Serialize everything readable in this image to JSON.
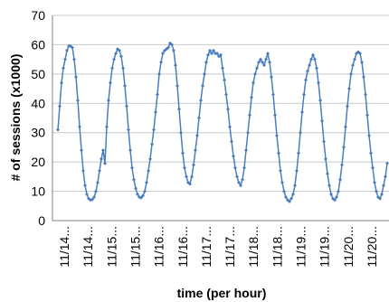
{
  "chart_data": {
    "type": "line",
    "title": "",
    "xlabel": "time (per hour)",
    "ylabel": "# of sessions (x1000)",
    "ylim": [
      0,
      70
    ],
    "yticks": [
      0,
      10,
      20,
      30,
      40,
      50,
      60,
      70
    ],
    "grid": true,
    "legend": "none",
    "x_tick_labels": [
      "11/14...",
      "11/14...",
      "11/15...",
      "11/15...",
      "11/16...",
      "11/16...",
      "11/17...",
      "11/17...",
      "11/18...",
      "11/18...",
      "11/19...",
      "11/19...",
      "11/20...",
      "11/20..."
    ],
    "series": [
      {
        "color": "#4a7ebb",
        "marker": "diamond",
        "values": [
          31,
          39,
          47,
          52,
          55,
          58,
          59.5,
          59.5,
          59,
          55,
          49,
          41,
          32,
          24,
          17,
          12,
          9,
          7.5,
          7,
          7.2,
          8,
          10,
          13,
          17,
          21,
          24,
          19.5,
          32,
          41,
          47,
          52,
          55,
          57,
          58.5,
          58,
          56,
          52,
          46,
          39,
          31,
          24,
          18,
          14,
          11,
          9,
          8,
          7.8,
          8.5,
          10,
          13,
          17,
          21,
          26,
          31,
          37,
          43,
          50,
          54,
          57,
          58,
          58.5,
          59,
          60.5,
          60,
          58,
          53,
          46,
          38,
          30,
          23,
          18,
          15,
          13,
          12.5,
          15,
          19,
          24,
          29,
          35,
          41,
          46,
          50,
          54,
          56.5,
          58,
          57,
          58,
          57,
          57,
          56,
          56.5,
          52,
          48,
          43,
          38,
          32,
          27,
          22,
          18,
          15,
          13,
          12,
          14,
          18,
          24,
          30,
          36,
          42,
          47,
          50,
          52,
          54,
          55,
          54,
          53,
          55,
          57,
          54,
          49,
          43,
          36,
          29,
          23,
          17,
          13,
          10,
          8,
          7,
          6.5,
          7.5,
          9,
          12,
          17,
          23,
          30,
          37,
          43,
          48,
          51,
          53,
          55,
          56.5,
          55,
          52,
          47,
          41,
          34,
          27,
          21,
          16,
          12,
          9,
          7.5,
          7,
          8,
          10,
          14,
          19,
          25,
          32,
          39,
          45,
          50,
          53,
          55,
          57,
          57.5,
          57,
          54,
          49,
          43,
          36,
          29,
          23,
          18,
          13,
          10,
          8,
          7.5,
          9,
          12,
          15,
          19.5
        ]
      }
    ]
  }
}
